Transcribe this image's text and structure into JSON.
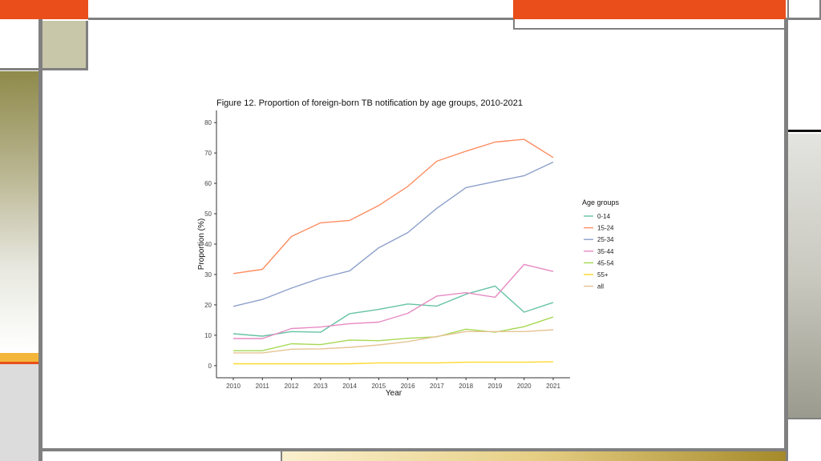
{
  "slide": {
    "accent_colors": {
      "orange": "#e94e1b",
      "gray": "#808080",
      "olive": "#8f8a4a",
      "khaki": "#c9c7a9",
      "amber": "#f3b63a",
      "gold": "#a58a2a"
    }
  },
  "chart_data": {
    "type": "line",
    "title": "Figure 12. Proportion of foreign-born TB notification by age groups, 2010-2021",
    "xlabel": "Year",
    "ylabel": "Proportion (%)",
    "x": [
      "2010",
      "2011",
      "2012",
      "2013",
      "2014",
      "2015",
      "2016",
      "2017",
      "2018",
      "2019",
      "2020",
      "2021"
    ],
    "ylim": [
      -4,
      84
    ],
    "yticks": [
      0,
      10,
      20,
      30,
      40,
      50,
      60,
      70,
      80
    ],
    "grid": false,
    "legend": {
      "title": "Age groups",
      "position": "right"
    },
    "series": [
      {
        "name": "0-14",
        "color": "#66c2a5",
        "values": [
          10.5,
          9.7,
          11.2,
          11.0,
          17.1,
          18.5,
          20.3,
          19.6,
          23.5,
          26.2,
          17.6,
          20.8
        ]
      },
      {
        "name": "15-24",
        "color": "#fc8d62",
        "values": [
          30.3,
          31.7,
          42.5,
          47.0,
          47.8,
          52.7,
          59.0,
          67.3,
          70.6,
          73.6,
          74.5,
          68.5
        ]
      },
      {
        "name": "25-34",
        "color": "#8da0cb",
        "values": [
          19.5,
          21.8,
          25.5,
          28.8,
          31.2,
          38.8,
          43.8,
          51.8,
          58.6,
          60.6,
          62.5,
          67.0
        ]
      },
      {
        "name": "35-44",
        "color": "#e78ac3",
        "values": [
          8.9,
          8.9,
          12.2,
          12.7,
          13.8,
          14.3,
          17.2,
          22.9,
          24.0,
          22.5,
          33.3,
          31.0
        ]
      },
      {
        "name": "45-54",
        "color": "#a6d854",
        "values": [
          4.9,
          4.9,
          7.2,
          6.9,
          8.4,
          8.2,
          9.0,
          9.5,
          12.0,
          11.0,
          12.8,
          16.0
        ]
      },
      {
        "name": "55+",
        "color": "#ffd92f",
        "values": [
          0.6,
          0.6,
          0.6,
          0.6,
          0.6,
          0.9,
          0.9,
          0.9,
          1.1,
          1.1,
          1.1,
          1.3
        ]
      },
      {
        "name": "all",
        "color": "#e5c494",
        "values": [
          4.2,
          4.2,
          5.4,
          5.5,
          6.0,
          6.8,
          7.9,
          9.6,
          11.2,
          11.2,
          11.2,
          11.8
        ]
      }
    ]
  }
}
